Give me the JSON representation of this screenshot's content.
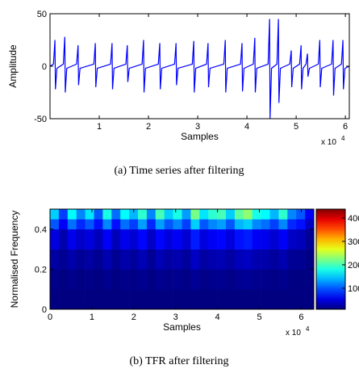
{
  "chart_data": [
    {
      "type": "line",
      "caption": "(a)  Time series after filtering",
      "xlabel": "Samples",
      "ylabel": "Amplitude",
      "x_offset_base": "x 10",
      "x_offset_exponent": "4",
      "xlim": [
        0,
        60800
      ],
      "ylim": [
        -50,
        50
      ],
      "yticks": [
        -50,
        0,
        50
      ],
      "xticks": [
        {
          "value": 10000,
          "label": "1"
        },
        {
          "value": 20000,
          "label": "2"
        },
        {
          "value": 30000,
          "label": "3"
        },
        {
          "value": 40000,
          "label": "4"
        },
        {
          "value": 50000,
          "label": "5"
        },
        {
          "value": 60000,
          "label": "6"
        }
      ],
      "series": [
        {
          "color": "#0000ff",
          "x": [
            0,
            700,
            1000,
            1100,
            1400,
            2700,
            3000,
            3100,
            3400,
            5400,
            5700,
            5800,
            6100,
            8900,
            9200,
            9300,
            9600,
            12300,
            12600,
            12700,
            13000,
            15400,
            15700,
            15800,
            16100,
            18700,
            19000,
            19100,
            19400,
            22000,
            22300,
            22400,
            22700,
            25300,
            25600,
            25700,
            26000,
            28900,
            29200,
            29300,
            29600,
            31800,
            32100,
            32200,
            32500,
            35300,
            35600,
            35700,
            36000,
            38700,
            39000,
            39100,
            39400,
            41300,
            41600,
            41700,
            42000,
            44300,
            44600,
            44700,
            45000,
            46100,
            46400,
            46500,
            46800,
            48700,
            49000,
            49100,
            49400,
            50700,
            51000,
            51100,
            51400,
            52000,
            52300,
            52400,
            52700,
            54500,
            54800,
            54900,
            55200,
            57200,
            57500,
            57600,
            57900,
            59200,
            59500,
            59600,
            59900,
            60800
          ],
          "values": [
            0,
            2,
            25,
            -22,
            -2,
            2,
            28,
            -25,
            -2,
            2,
            20,
            -18,
            -2,
            2,
            22,
            -20,
            -2,
            2,
            22,
            -22,
            -2,
            2,
            20,
            -15,
            -2,
            2,
            25,
            -25,
            -2,
            2,
            22,
            -22,
            -2,
            2,
            22,
            -18,
            -2,
            2,
            24,
            -25,
            -2,
            2,
            22,
            -20,
            -2,
            2,
            25,
            -25,
            -2,
            2,
            22,
            -24,
            -2,
            2,
            27,
            -25,
            -2,
            2,
            45,
            -50,
            -2,
            2,
            45,
            -35,
            -2,
            2,
            15,
            -20,
            -2,
            2,
            20,
            -22,
            -2,
            2,
            12,
            -10,
            -2,
            2,
            25,
            -20,
            -2,
            2,
            25,
            -28,
            -2,
            2,
            25,
            -22,
            -2,
            0
          ]
        }
      ]
    },
    {
      "type": "heatmap",
      "caption": "(b)  TFR after filtering",
      "xlabel": "Samples",
      "ylabel": "Normalised Frequency",
      "x_offset_base": "x 10",
      "x_offset_exponent": "4",
      "xlim": [
        0,
        63000
      ],
      "ylim": [
        0,
        0.5
      ],
      "yticks": [
        0,
        0.2,
        0.4
      ],
      "xticks": [
        0,
        {
          "value": 10000,
          "label": "1"
        },
        {
          "value": 20000,
          "label": "2"
        },
        {
          "value": 30000,
          "label": "3"
        },
        {
          "value": 40000,
          "label": "4"
        },
        {
          "value": 50000,
          "label": "5"
        },
        {
          "value": 60000,
          "label": "6"
        }
      ],
      "xbins": [
        0,
        2100,
        4200,
        6300,
        8400,
        10500,
        12600,
        14700,
        16800,
        18900,
        21000,
        23100,
        25200,
        27300,
        29400,
        31500,
        33600,
        35700,
        37800,
        39900,
        42000,
        44100,
        46200,
        48300,
        50400,
        52500,
        54600,
        56700,
        58800,
        60900,
        63000
      ],
      "ybins": [
        0,
        0.1,
        0.2,
        0.3,
        0.4,
        0.45,
        0.5
      ],
      "colormap": "jet",
      "clim": [
        10,
        438
      ],
      "colorbar_ticks": [
        100,
        200,
        300,
        400
      ],
      "z": [
        [
          10,
          10,
          10,
          10,
          10,
          10,
          10,
          10,
          10,
          10,
          10,
          10,
          10,
          10,
          10,
          10,
          10,
          10,
          10,
          10,
          10,
          10,
          10,
          10,
          10,
          10,
          10,
          10,
          10,
          10
        ],
        [
          14,
          11,
          15,
          12,
          14,
          11,
          16,
          11,
          15,
          13,
          17,
          12,
          17,
          14,
          16,
          13,
          19,
          14,
          16,
          17,
          14,
          18,
          19,
          16,
          15,
          13,
          16,
          12,
          11,
          9
        ],
        [
          25,
          18,
          28,
          20,
          25,
          18,
          30,
          18,
          28,
          22,
          32,
          20,
          32,
          25,
          30,
          22,
          38,
          25,
          30,
          32,
          25,
          35,
          38,
          30,
          28,
          22,
          30,
          20,
          18,
          12
        ],
        [
          50,
          30,
          55,
          40,
          50,
          35,
          60,
          35,
          55,
          45,
          65,
          40,
          65,
          50,
          60,
          45,
          75,
          50,
          60,
          65,
          50,
          70,
          75,
          60,
          55,
          45,
          60,
          40,
          35,
          20
        ],
        [
          100,
          60,
          110,
          80,
          100,
          70,
          120,
          70,
          110,
          90,
          130,
          80,
          130,
          100,
          120,
          90,
          150,
          100,
          120,
          130,
          100,
          140,
          150,
          120,
          110,
          90,
          120,
          80,
          70,
          40
        ],
        [
          150,
          90,
          170,
          120,
          160,
          100,
          180,
          110,
          170,
          140,
          190,
          120,
          200,
          150,
          180,
          130,
          220,
          160,
          190,
          200,
          150,
          210,
          230,
          180,
          170,
          140,
          190,
          120,
          100,
          60
        ]
      ]
    }
  ]
}
